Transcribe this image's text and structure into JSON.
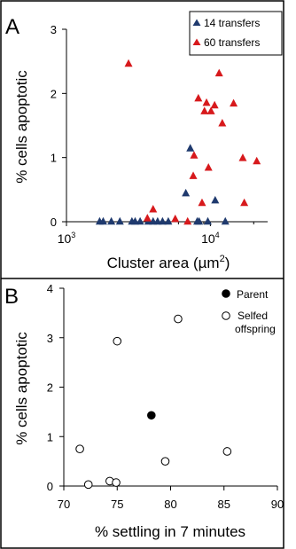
{
  "chart_data": [
    {
      "panel_label": "A",
      "type": "scatter",
      "xlabel": "Cluster area (µm²)",
      "xlabel_parts": {
        "base": "Cluster area (µm",
        "sup": "2",
        "close": ")"
      },
      "ylabel": "% cells apoptotic",
      "x_scale": "log",
      "xlim": [
        1000,
        25000
      ],
      "ylim": [
        0,
        3
      ],
      "x_tick_labels": [
        {
          "base": "10",
          "exp": "3",
          "value": 1000
        },
        {
          "base": "10",
          "exp": "4",
          "value": 10000
        }
      ],
      "y_ticks": [
        0,
        1,
        2,
        3
      ],
      "legend_position": "top-right",
      "series": [
        {
          "name": "14 transfers",
          "marker": "triangle",
          "color": "#1f3a6e",
          "points": [
            [
              1700,
              0
            ],
            [
              1800,
              0
            ],
            [
              2050,
              0
            ],
            [
              2350,
              0
            ],
            [
              2850,
              0
            ],
            [
              3000,
              0
            ],
            [
              3250,
              0
            ],
            [
              3700,
              0
            ],
            [
              4000,
              0
            ],
            [
              4300,
              0
            ],
            [
              4650,
              0
            ],
            [
              5100,
              0
            ],
            [
              6750,
              0.44
            ],
            [
              7250,
              1.14
            ],
            [
              8100,
              0
            ],
            [
              8350,
              0
            ],
            [
              9600,
              0
            ],
            [
              10800,
              0.33
            ],
            [
              12700,
              0
            ]
          ]
        },
        {
          "name": "60 transfers",
          "marker": "triangle",
          "color": "#d7191c",
          "points": [
            [
              2700,
              2.46
            ],
            [
              3650,
              0.05
            ],
            [
              4000,
              0.19
            ],
            [
              5700,
              0.04
            ],
            [
              6950,
              0
            ],
            [
              7600,
              0.71
            ],
            [
              7700,
              1.03
            ],
            [
              8250,
              1.92
            ],
            [
              8750,
              0.29
            ],
            [
              9100,
              1.72
            ],
            [
              9400,
              1.85
            ],
            [
              9700,
              0.84
            ],
            [
              10100,
              1.72
            ],
            [
              10700,
              1.81
            ],
            [
              11500,
              2.31
            ],
            [
              12100,
              1.53
            ],
            [
              14500,
              1.84
            ],
            [
              16800,
              0.99
            ],
            [
              17200,
              0.29
            ],
            [
              21000,
              0.94
            ]
          ]
        }
      ]
    },
    {
      "panel_label": "B",
      "type": "scatter",
      "xlabel": "% settling in 7 minutes",
      "ylabel": "% cells apoptotic",
      "xlim": [
        70,
        90
      ],
      "ylim": [
        0,
        4
      ],
      "x_ticks": [
        70,
        75,
        80,
        85,
        90
      ],
      "y_ticks": [
        0,
        1,
        2,
        3,
        4
      ],
      "legend_position": "top-right",
      "series": [
        {
          "name": "Parent",
          "marker": "filled-circle",
          "color": "#000000",
          "points": [
            [
              78.2,
              1.43
            ]
          ]
        },
        {
          "name": "Selfed offspring",
          "name_lines": [
            "Selfed",
            "offspring"
          ],
          "marker": "open-circle",
          "color": "#000000",
          "points": [
            [
              71.5,
              0.75
            ],
            [
              72.3,
              0.03
            ],
            [
              74.3,
              0.1
            ],
            [
              74.9,
              0.07
            ],
            [
              75.0,
              2.93
            ],
            [
              79.5,
              0.5
            ],
            [
              80.7,
              3.38
            ],
            [
              85.3,
              0.7
            ]
          ]
        }
      ]
    }
  ]
}
